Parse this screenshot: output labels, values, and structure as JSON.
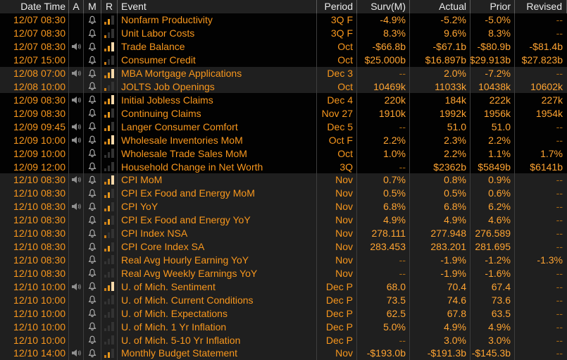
{
  "app": "economic-calendar-table",
  "colors": {
    "background": "#000000",
    "alt_group_background": "#1f1f1f",
    "header_background": "#212121",
    "header_text": "#ececec",
    "amber_label": "#f8971d",
    "amber_value": "#ffa432",
    "muted_dash": "#a96a14",
    "grid_line": "#3d3d3d",
    "bell_icon": "#b5b5b5",
    "speaker_icon": "#8f8f8f",
    "relevance_bar_low": "#c97b15",
    "relevance_bar_mid": "#e89a1d",
    "relevance_bar_high": "#f6d9ab",
    "relevance_bar_unlit": "#333333"
  },
  "header": {
    "datetime": "Date Time",
    "alert": "A",
    "monitor": "M",
    "relevance": "R",
    "event": "Event",
    "period": "Period",
    "surv": "Surv(M)",
    "actual": "Actual",
    "prior": "Prior",
    "revised": "Revised"
  },
  "icons": {
    "alert": "speaker-icon",
    "monitor": "bell-icon",
    "relevance": "relevance-bars-icon"
  },
  "rows": [
    {
      "datetime": "12/07 08:30",
      "alert": false,
      "monitor": true,
      "relevance": 2,
      "event": "Nonfarm Productivity",
      "period": "3Q F",
      "surv": "-4.9%",
      "actual": "-5.2%",
      "prior": "-5.0%",
      "revised": "--",
      "shade": "dark"
    },
    {
      "datetime": "12/07 08:30",
      "alert": false,
      "monitor": true,
      "relevance": 1,
      "event": "Unit Labor Costs",
      "period": "3Q F",
      "surv": "8.3%",
      "actual": "9.6%",
      "prior": "8.3%",
      "revised": "--",
      "shade": "dark"
    },
    {
      "datetime": "12/07 08:30",
      "alert": true,
      "monitor": true,
      "relevance": 3,
      "event": "Trade Balance",
      "period": "Oct",
      "surv": "-$66.8b",
      "actual": "-$67.1b",
      "prior": "-$80.9b",
      "revised": "-$81.4b",
      "shade": "dark"
    },
    {
      "datetime": "12/07 15:00",
      "alert": false,
      "monitor": true,
      "relevance": 1,
      "event": "Consumer Credit",
      "period": "Oct",
      "surv": "$25.000b",
      "actual": "$16.897b",
      "prior": "$29.913b",
      "revised": "$27.823b",
      "shade": "dark"
    },
    {
      "datetime": "12/08 07:00",
      "alert": true,
      "monitor": true,
      "relevance": 3,
      "event": "MBA Mortgage Applications",
      "period": "Dec 3",
      "surv": "--",
      "actual": "2.0%",
      "prior": "-7.2%",
      "revised": "--",
      "shade": "light"
    },
    {
      "datetime": "12/08 10:00",
      "alert": false,
      "monitor": true,
      "relevance": 1,
      "event": "JOLTS Job Openings",
      "period": "Oct",
      "surv": "10469k",
      "actual": "11033k",
      "prior": "10438k",
      "revised": "10602k",
      "shade": "light"
    },
    {
      "datetime": "12/09 08:30",
      "alert": true,
      "monitor": true,
      "relevance": 3,
      "event": "Initial Jobless Claims",
      "period": "Dec 4",
      "surv": "220k",
      "actual": "184k",
      "prior": "222k",
      "revised": "227k",
      "shade": "dark"
    },
    {
      "datetime": "12/09 08:30",
      "alert": false,
      "monitor": true,
      "relevance": 2,
      "event": "Continuing Claims",
      "period": "Nov 27",
      "surv": "1910k",
      "actual": "1992k",
      "prior": "1956k",
      "revised": "1954k",
      "shade": "dark"
    },
    {
      "datetime": "12/09 09:45",
      "alert": true,
      "monitor": true,
      "relevance": 2,
      "event": "Langer Consumer Comfort",
      "period": "Dec 5",
      "surv": "--",
      "actual": "51.0",
      "prior": "51.0",
      "revised": "--",
      "shade": "dark"
    },
    {
      "datetime": "12/09 10:00",
      "alert": true,
      "monitor": true,
      "relevance": 3,
      "event": "Wholesale Inventories MoM",
      "period": "Oct F",
      "surv": "2.2%",
      "actual": "2.3%",
      "prior": "2.2%",
      "revised": "--",
      "shade": "dark"
    },
    {
      "datetime": "12/09 10:00",
      "alert": false,
      "monitor": true,
      "relevance": 0,
      "event": "Wholesale Trade Sales MoM",
      "period": "Oct",
      "surv": "1.0%",
      "actual": "2.2%",
      "prior": "1.1%",
      "revised": "1.7%",
      "shade": "dark"
    },
    {
      "datetime": "12/09 12:00",
      "alert": false,
      "monitor": true,
      "relevance": 0,
      "event": "Household Change in Net Worth",
      "period": "3Q",
      "surv": "--",
      "actual": "$2362b",
      "prior": "$5849b",
      "revised": "$6141b",
      "shade": "dark"
    },
    {
      "datetime": "12/10 08:30",
      "alert": true,
      "monitor": true,
      "relevance": 3,
      "event": "CPI MoM",
      "period": "Nov",
      "surv": "0.7%",
      "actual": "0.8%",
      "prior": "0.9%",
      "revised": "--",
      "shade": "light"
    },
    {
      "datetime": "12/10 08:30",
      "alert": false,
      "monitor": true,
      "relevance": 2,
      "event": "CPI Ex Food and Energy MoM",
      "period": "Nov",
      "surv": "0.5%",
      "actual": "0.5%",
      "prior": "0.6%",
      "revised": "--",
      "shade": "light"
    },
    {
      "datetime": "12/10 08:30",
      "alert": true,
      "monitor": true,
      "relevance": 2,
      "event": "CPI YoY",
      "period": "Nov",
      "surv": "6.8%",
      "actual": "6.8%",
      "prior": "6.2%",
      "revised": "--",
      "shade": "light"
    },
    {
      "datetime": "12/10 08:30",
      "alert": false,
      "monitor": true,
      "relevance": 2,
      "event": "CPI Ex Food and Energy YoY",
      "period": "Nov",
      "surv": "4.9%",
      "actual": "4.9%",
      "prior": "4.6%",
      "revised": "--",
      "shade": "light"
    },
    {
      "datetime": "12/10 08:30",
      "alert": false,
      "monitor": true,
      "relevance": 1,
      "event": "CPI Index NSA",
      "period": "Nov",
      "surv": "278.111",
      "actual": "277.948",
      "prior": "276.589",
      "revised": "--",
      "shade": "light"
    },
    {
      "datetime": "12/10 08:30",
      "alert": false,
      "monitor": true,
      "relevance": 2,
      "event": "CPI Core Index SA",
      "period": "Nov",
      "surv": "283.453",
      "actual": "283.201",
      "prior": "281.695",
      "revised": "--",
      "shade": "light"
    },
    {
      "datetime": "12/10 08:30",
      "alert": false,
      "monitor": true,
      "relevance": 0,
      "event": "Real Avg Hourly Earning YoY",
      "period": "Nov",
      "surv": "--",
      "actual": "-1.9%",
      "prior": "-1.2%",
      "revised": "-1.3%",
      "shade": "light"
    },
    {
      "datetime": "12/10 08:30",
      "alert": false,
      "monitor": true,
      "relevance": 0,
      "event": "Real Avg Weekly Earnings YoY",
      "period": "Nov",
      "surv": "--",
      "actual": "-1.9%",
      "prior": "-1.6%",
      "revised": "--",
      "shade": "light"
    },
    {
      "datetime": "12/10 10:00",
      "alert": true,
      "monitor": true,
      "relevance": 3,
      "event": "U. of Mich. Sentiment",
      "period": "Dec P",
      "surv": "68.0",
      "actual": "70.4",
      "prior": "67.4",
      "revised": "--",
      "shade": "light"
    },
    {
      "datetime": "12/10 10:00",
      "alert": false,
      "monitor": true,
      "relevance": 0,
      "event": "U. of Mich. Current Conditions",
      "period": "Dec P",
      "surv": "73.5",
      "actual": "74.6",
      "prior": "73.6",
      "revised": "--",
      "shade": "light"
    },
    {
      "datetime": "12/10 10:00",
      "alert": false,
      "monitor": true,
      "relevance": 0,
      "event": "U. of Mich. Expectations",
      "period": "Dec P",
      "surv": "62.5",
      "actual": "67.8",
      "prior": "63.5",
      "revised": "--",
      "shade": "light"
    },
    {
      "datetime": "12/10 10:00",
      "alert": false,
      "monitor": true,
      "relevance": 0,
      "event": "U. of Mich. 1 Yr Inflation",
      "period": "Dec P",
      "surv": "5.0%",
      "actual": "4.9%",
      "prior": "4.9%",
      "revised": "--",
      "shade": "light"
    },
    {
      "datetime": "12/10 10:00",
      "alert": false,
      "monitor": true,
      "relevance": 0,
      "event": "U. of Mich. 5-10 Yr Inflation",
      "period": "Dec P",
      "surv": "--",
      "actual": "3.0%",
      "prior": "3.0%",
      "revised": "--",
      "shade": "light"
    },
    {
      "datetime": "12/10 14:00",
      "alert": true,
      "monitor": true,
      "relevance": 2,
      "event": "Monthly Budget Statement",
      "period": "Nov",
      "surv": "-$193.0b",
      "actual": "-$191.3b",
      "prior": "-$145.3b",
      "revised": "--",
      "shade": "light"
    }
  ]
}
